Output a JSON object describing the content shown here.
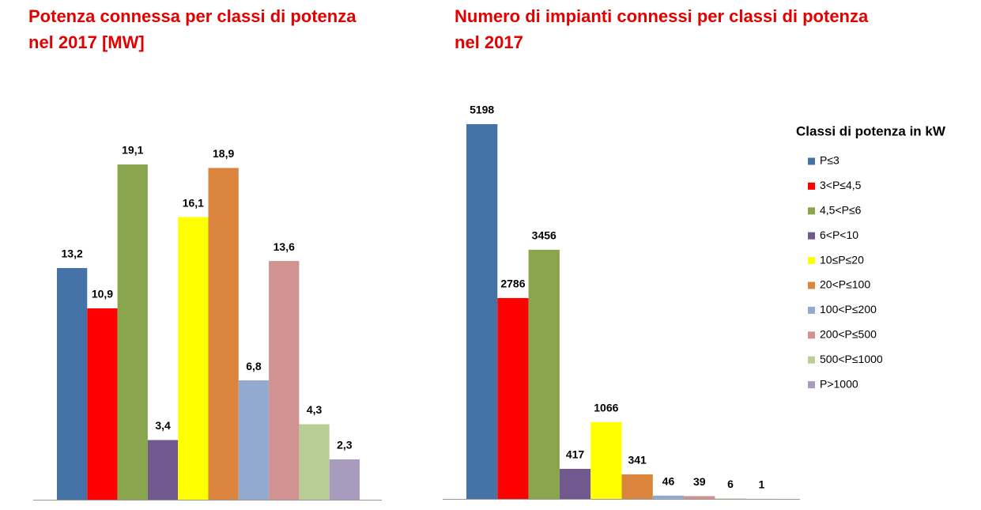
{
  "chart_data": [
    {
      "type": "bar",
      "title": "Potenza connessa per classi di potenza\nnel 2017 [MW]",
      "values": [
        13.2,
        10.9,
        19.1,
        3.4,
        16.1,
        18.9,
        6.8,
        13.6,
        4.3,
        2.3
      ],
      "value_labels": [
        "13,2",
        "10,9",
        "19,1",
        "3,4",
        "16,1",
        "18,9",
        "6,8",
        "13,6",
        "4,3",
        "2,3"
      ]
    },
    {
      "type": "bar",
      "title": "Numero di impianti connessi per classi di potenza\nnel 2017",
      "values": [
        5198,
        2786,
        3456,
        417,
        1066,
        341,
        46,
        39,
        6,
        1
      ],
      "legend_title": "Classi di potenza in kW",
      "categories": [
        "P≤3",
        "3<P≤4,5",
        "4,5<P≤6",
        "6<P<10",
        "10≤P≤20",
        "20<P≤100",
        "100<P≤200",
        "200<P≤500",
        "500<P≤1000",
        "P>1000"
      ],
      "colors": [
        "#4572a7",
        "#ff0000",
        "#89a54e",
        "#71588f",
        "#ffff00",
        "#db843d",
        "#93a9cf",
        "#d19392",
        "#b9cd96",
        "#a99bbd"
      ]
    }
  ]
}
